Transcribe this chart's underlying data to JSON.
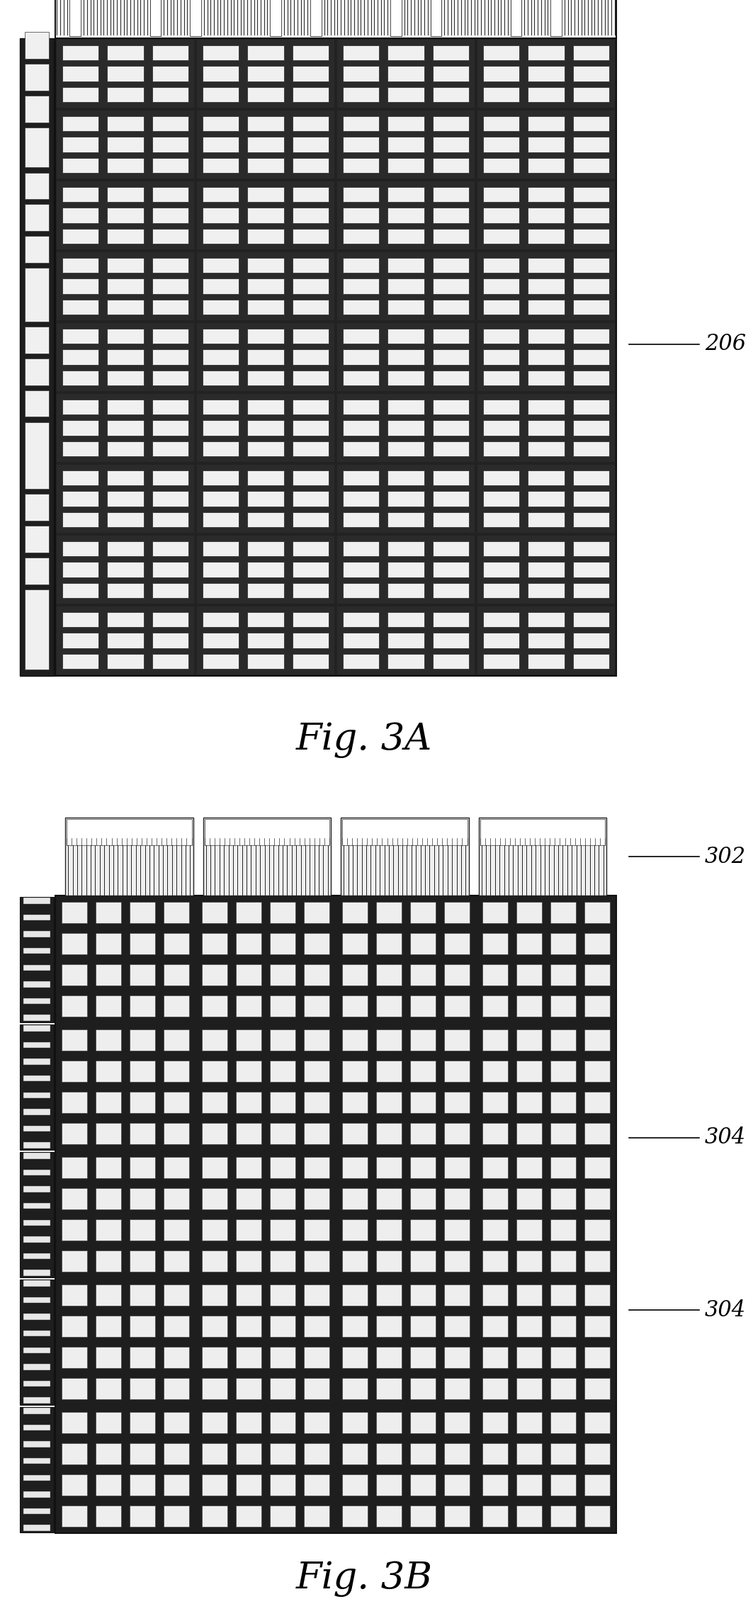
{
  "bg_color": "#ffffff",
  "dark_bg": "#2a2a2a",
  "cell_color": "#f8f8f8",
  "fig3a_title": "Fig. 3A",
  "fig3b_title": "Fig. 3B",
  "label_206": "206",
  "label_302": "302",
  "label_304a": "304",
  "label_304b": "304"
}
